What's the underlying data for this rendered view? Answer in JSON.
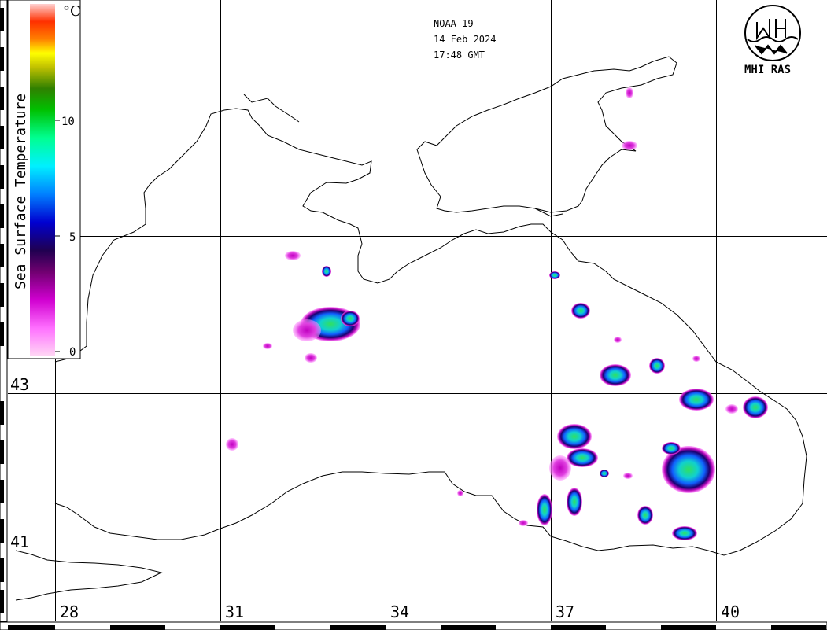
{
  "header": {
    "satellite": "NOAA-19",
    "date": "14 Feb 2024",
    "time": "17:48 GMT"
  },
  "logo": {
    "text": "MHI RAS"
  },
  "legend": {
    "title": "Sea Surface Temperature",
    "unit": "°C",
    "ticks": [
      "10",
      "5",
      "0"
    ],
    "colors": [
      "#ffc8f0",
      "#ff50ff",
      "#c800c8",
      "#780078",
      "#200060",
      "#0000c8",
      "#0080ff",
      "#00ffff",
      "#00ff80",
      "#00c800",
      "#008000",
      "#a0a000",
      "#ffff00",
      "#ff8000",
      "#ff2000",
      "#ffc0c0"
    ]
  },
  "axes": {
    "longitude_labels": [
      "28",
      "31",
      "34",
      "37",
      "40"
    ],
    "latitude_labels": [
      "43",
      "41"
    ]
  },
  "colors": {
    "coast": "#000000",
    "grid": "#000000"
  }
}
